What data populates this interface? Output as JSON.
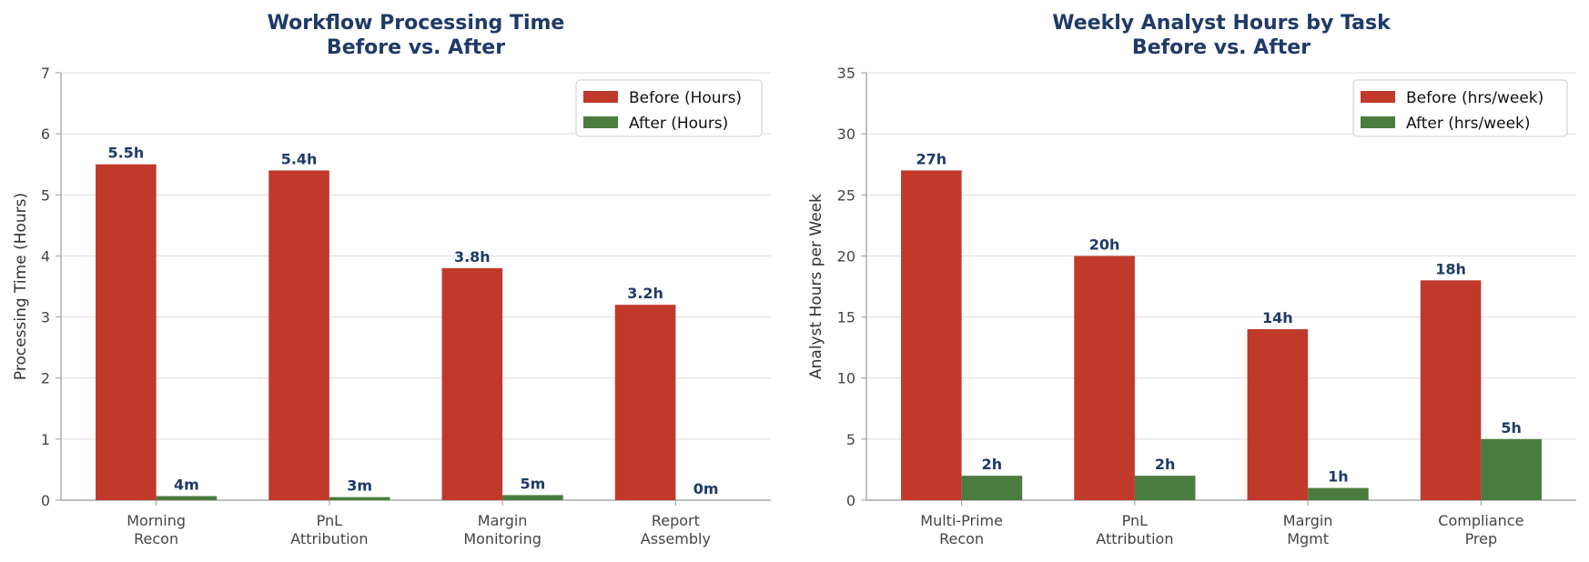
{
  "colors": {
    "before": "#c0392b",
    "after": "#4a7c3f",
    "title": "#1f3a68",
    "label": "#1f3a68",
    "grid": "#dddddd",
    "axis": "#999999"
  },
  "chart_data": [
    {
      "type": "bar",
      "title_lines": [
        "Workflow Processing Time",
        "Before vs. After"
      ],
      "ylabel": "Processing Time (Hours)",
      "xlabel": "",
      "categories": [
        [
          "Morning",
          "Recon"
        ],
        [
          "PnL",
          "Attribution"
        ],
        [
          "Margin",
          "Monitoring"
        ],
        [
          "Report",
          "Assembly"
        ]
      ],
      "series": [
        {
          "name": "Before (Hours)",
          "values": [
            5.5,
            5.4,
            3.8,
            3.2
          ],
          "labels": [
            "5.5h",
            "5.4h",
            "3.8h",
            "3.2h"
          ]
        },
        {
          "name": "After (Hours)",
          "values": [
            0.067,
            0.05,
            0.083,
            0.0
          ],
          "labels": [
            "4m",
            "3m",
            "5m",
            "0m"
          ]
        }
      ],
      "ylim": [
        0,
        7
      ],
      "yticks": [
        0,
        1,
        2,
        3,
        4,
        5,
        6,
        7
      ],
      "grid": true,
      "legend": "top-right"
    },
    {
      "type": "bar",
      "title_lines": [
        "Weekly Analyst Hours by Task",
        "Before vs. After"
      ],
      "ylabel": "Analyst Hours per Week",
      "xlabel": "",
      "categories": [
        [
          "Multi-Prime",
          "Recon"
        ],
        [
          "PnL",
          "Attribution"
        ],
        [
          "Margin",
          "Mgmt"
        ],
        [
          "Compliance",
          "Prep"
        ]
      ],
      "series": [
        {
          "name": "Before (hrs/week)",
          "values": [
            27,
            20,
            14,
            18
          ],
          "labels": [
            "27h",
            "20h",
            "14h",
            "18h"
          ]
        },
        {
          "name": "After (hrs/week)",
          "values": [
            2,
            2,
            1,
            5
          ],
          "labels": [
            "2h",
            "2h",
            "1h",
            "5h"
          ]
        }
      ],
      "ylim": [
        0,
        35
      ],
      "yticks": [
        0,
        5,
        10,
        15,
        20,
        25,
        30,
        35
      ],
      "grid": true,
      "legend": "top-right"
    }
  ]
}
